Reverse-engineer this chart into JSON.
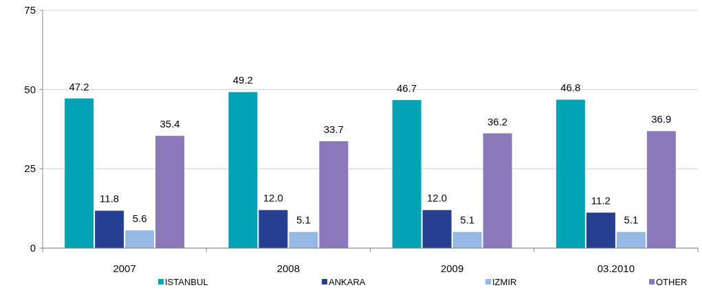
{
  "chart_data": {
    "type": "bar",
    "categories": [
      "2007",
      "2008",
      "2009",
      "03.2010"
    ],
    "series": [
      {
        "name": "ISTANBUL",
        "color": "#00a3b4",
        "values": [
          47.2,
          49.2,
          46.7,
          46.8
        ],
        "value_labels": [
          "47.2",
          "49.2",
          "46.7",
          "46.8"
        ]
      },
      {
        "name": "ANKARA",
        "color": "#263f8f",
        "values": [
          11.8,
          12,
          12,
          11.2
        ],
        "value_labels": [
          "11.8",
          "12.0",
          "12.0",
          "11.2"
        ]
      },
      {
        "name": "IZMIR",
        "color": "#95b9e5",
        "values": [
          5.6,
          5.1,
          5.1,
          5.1
        ],
        "value_labels": [
          "5.6",
          "5.1",
          "5.1",
          "5.1"
        ]
      },
      {
        "name": "OTHER",
        "color": "#8b78b8",
        "values": [
          35.4,
          33.7,
          36.2,
          36.9
        ],
        "value_labels": [
          "35.4",
          "33.7",
          "36.2",
          "36.9"
        ]
      }
    ],
    "ylim": [
      0,
      75
    ],
    "yticks": [
      0,
      25,
      50,
      75
    ],
    "grid": "y",
    "legend": "bottom"
  }
}
